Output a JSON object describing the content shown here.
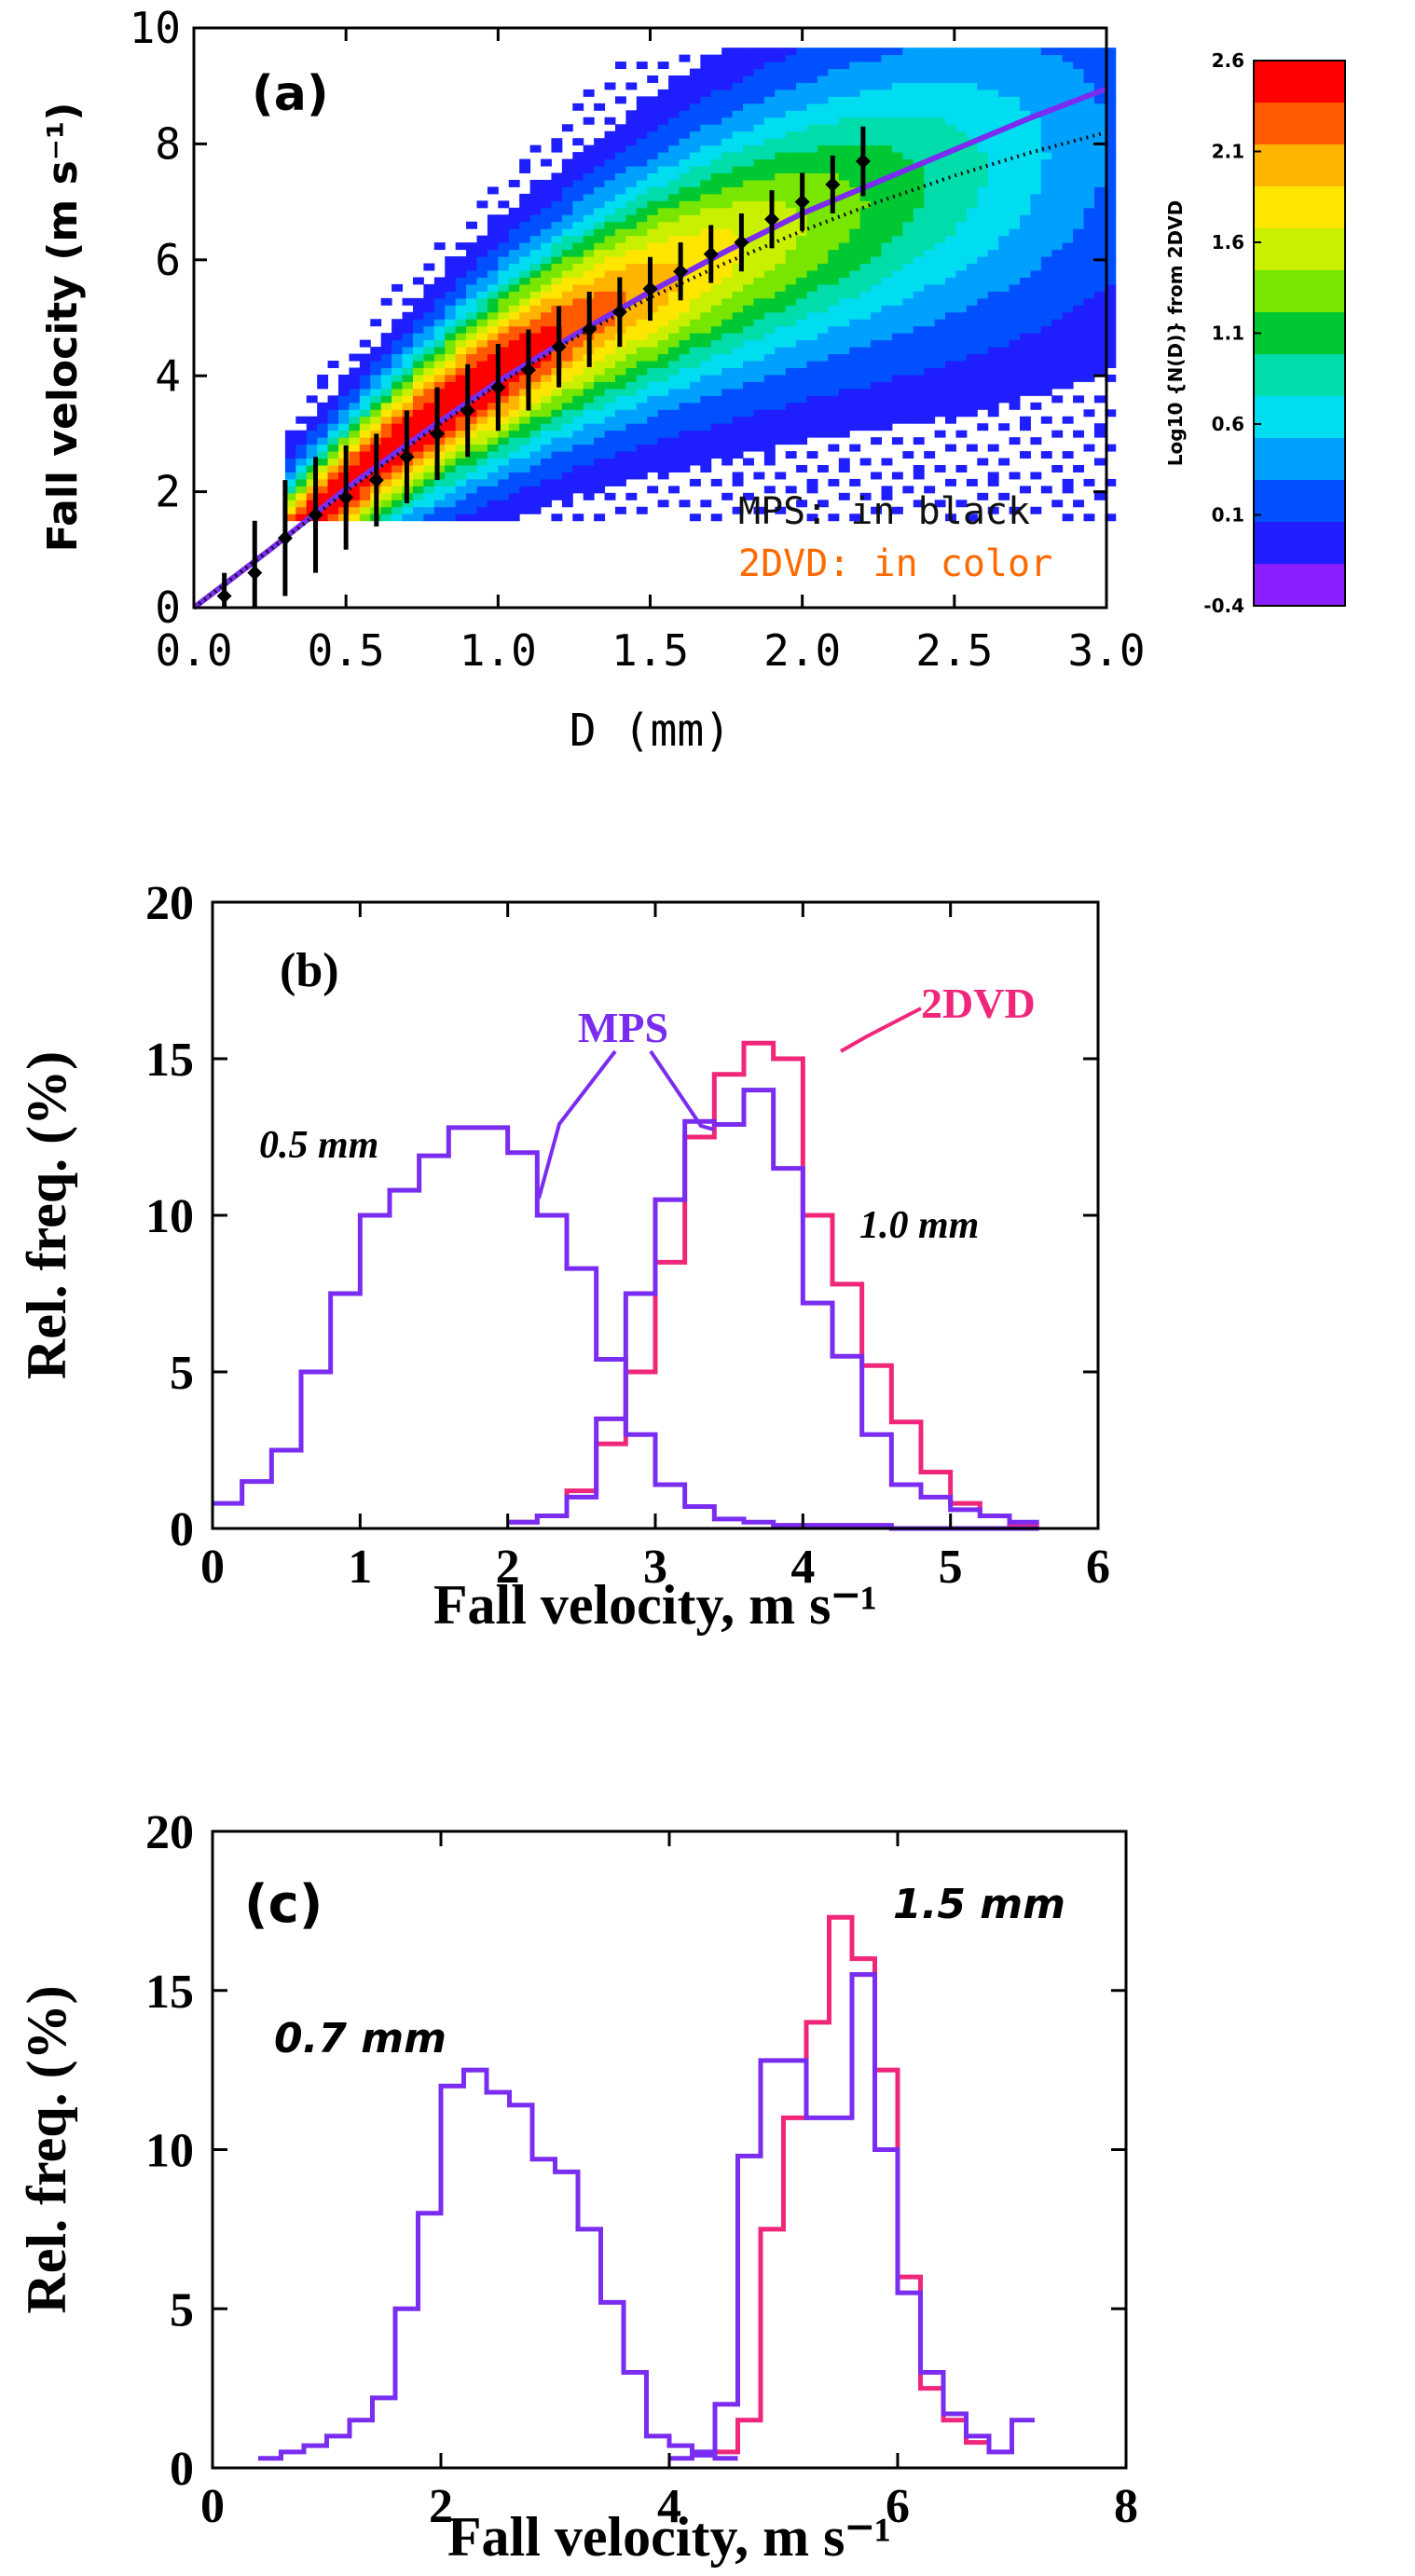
{
  "colors": {
    "mps": "#7a2cf0",
    "dvd": "#f0267a",
    "mps_label": "#111111",
    "dvd_label": "#ff6a00",
    "axis": "#000000"
  },
  "chart_data": [
    {
      "panel": "a",
      "type": "heatmap",
      "panel_label": "(a)",
      "xlabel": "D (mm)",
      "ylabel": "Fall velocity (m s⁻¹)",
      "xlim": [
        0,
        3.0
      ],
      "ylim": [
        0,
        10
      ],
      "xticks": [
        "0.0",
        "0.5",
        "1.0",
        "1.5",
        "2.0",
        "2.5",
        "3.0"
      ],
      "xtick_values": [
        0,
        0.5,
        1.0,
        1.5,
        2.0,
        2.5,
        3.0
      ],
      "yticks": [
        "0",
        "2",
        "4",
        "6",
        "8",
        "10"
      ],
      "ytick_values": [
        0,
        2,
        4,
        6,
        8,
        10
      ],
      "legend": {
        "mps": "MPS: in black",
        "dvd": "2DVD: in color"
      },
      "colorbar": {
        "label": "Log10 {N(D)} from 2DVD",
        "ticks": [
          "2.6",
          "2.1",
          "1.6",
          "1.1",
          "0.6",
          "0.1",
          "-0.4"
        ],
        "tick_values": [
          2.6,
          2.1,
          1.6,
          1.1,
          0.6,
          0.1,
          -0.4
        ],
        "colors": [
          "#ff0000",
          "#ff5a00",
          "#ffb400",
          "#ffe600",
          "#c8f000",
          "#78e600",
          "#00c832",
          "#00dcaa",
          "#00dcf0",
          "#00a0ff",
          "#0050ff",
          "#1e1eff",
          "#8a1eff"
        ]
      },
      "mps_points": {
        "x": [
          0.1,
          0.2,
          0.3,
          0.4,
          0.5,
          0.6,
          0.7,
          0.8,
          0.9,
          1.0,
          1.1,
          1.2,
          1.3,
          1.4,
          1.5,
          1.6,
          1.7,
          1.8,
          1.9,
          2.0,
          2.1,
          2.2
        ],
        "y": [
          0.2,
          0.6,
          1.2,
          1.6,
          1.9,
          2.2,
          2.6,
          3.0,
          3.4,
          3.8,
          4.1,
          4.5,
          4.8,
          5.1,
          5.5,
          5.8,
          6.1,
          6.3,
          6.7,
          7.0,
          7.3,
          7.7
        ],
        "err": [
          0.4,
          0.9,
          1.0,
          1.0,
          0.9,
          0.8,
          0.8,
          0.8,
          0.8,
          0.75,
          0.7,
          0.7,
          0.65,
          0.6,
          0.55,
          0.5,
          0.5,
          0.5,
          0.5,
          0.5,
          0.5,
          0.6
        ]
      },
      "fit_curve": {
        "x": [
          0.0,
          0.25,
          0.5,
          0.75,
          1.0,
          1.25,
          1.5,
          1.75,
          2.0,
          2.25,
          2.5,
          2.75,
          3.0
        ],
        "y": [
          0.0,
          1.0,
          2.05,
          3.0,
          3.9,
          4.7,
          5.45,
          6.15,
          6.8,
          7.35,
          7.9,
          8.45,
          8.95
        ]
      },
      "reference_curve": {
        "x": [
          0.0,
          0.25,
          0.5,
          0.75,
          1.0,
          1.25,
          1.5,
          1.75,
          2.0,
          2.25,
          2.5,
          2.75,
          3.0
        ],
        "y": [
          0.0,
          1.0,
          2.0,
          2.95,
          3.85,
          4.65,
          5.35,
          5.95,
          6.5,
          7.0,
          7.45,
          7.85,
          8.2
        ]
      }
    },
    {
      "panel": "b",
      "type": "line",
      "panel_label": "(b)",
      "xlabel": "Fall velocity, m s⁻¹",
      "ylabel": "Rel. freq. (%)",
      "xlim": [
        0,
        6
      ],
      "ylim": [
        0,
        20
      ],
      "xticks": [
        "0",
        "1",
        "2",
        "3",
        "4",
        "5",
        "6"
      ],
      "xtick_values": [
        0,
        1,
        2,
        3,
        4,
        5,
        6
      ],
      "yticks": [
        "0",
        "5",
        "10",
        "15",
        "20"
      ],
      "ytick_values": [
        0,
        5,
        10,
        15,
        20
      ],
      "annotations": {
        "mps": "MPS",
        "dvd": "2DVD",
        "d1": "0.5 mm",
        "d2": "1.0 mm"
      },
      "bin_width": 0.2,
      "series": [
        {
          "name": "MPS",
          "color": "#7a2cf0",
          "x": [
            0.0,
            0.2,
            0.4,
            0.6,
            0.8,
            1.0,
            1.2,
            1.4,
            1.6,
            1.8,
            2.0,
            2.2,
            2.4,
            2.6,
            2.8,
            3.0,
            3.2,
            3.4,
            3.6,
            3.8,
            4.0,
            4.2,
            4.4,
            4.6,
            4.8,
            5.0,
            5.2,
            5.4
          ],
          "values": [
            0.8,
            1.5,
            2.5,
            5.0,
            7.5,
            10.0,
            10.8,
            11.9,
            12.8,
            12.8,
            12.0,
            10.0,
            8.3,
            5.4,
            3.0,
            1.4,
            0.7,
            0.3,
            0.2,
            0.1,
            0.1,
            0.1,
            0.1,
            0.0,
            0.0,
            0.0,
            0.0,
            0.0
          ]
        },
        {
          "name": "MPS",
          "color": "#7a2cf0",
          "x": [
            2.0,
            2.2,
            2.4,
            2.6,
            2.8,
            3.0,
            3.2,
            3.4,
            3.6,
            3.8,
            4.0,
            4.2,
            4.4,
            4.6,
            4.8,
            5.0,
            5.2,
            5.4
          ],
          "values": [
            0.2,
            0.4,
            1.0,
            3.5,
            7.5,
            10.5,
            13.0,
            12.9,
            14.0,
            11.5,
            7.2,
            5.5,
            3.0,
            1.4,
            1.0,
            0.6,
            0.4,
            0.2
          ]
        },
        {
          "name": "2DVD",
          "color": "#f0267a",
          "x": [
            2.0,
            2.2,
            2.4,
            2.6,
            2.8,
            3.0,
            3.2,
            3.4,
            3.6,
            3.8,
            4.0,
            4.2,
            4.4,
            4.6,
            4.8,
            5.0,
            5.2,
            5.4
          ],
          "values": [
            0.2,
            0.4,
            1.2,
            2.7,
            5.0,
            8.5,
            12.5,
            14.5,
            15.5,
            15.0,
            10.0,
            7.8,
            5.2,
            3.4,
            1.8,
            0.8,
            0.4,
            0.1
          ]
        }
      ]
    },
    {
      "panel": "c",
      "type": "line",
      "panel_label": "(c)",
      "xlabel": "Fall velocity, m s⁻¹",
      "ylabel": "Rel. freq. (%)",
      "xlim": [
        0,
        8
      ],
      "ylim": [
        0,
        20
      ],
      "xticks": [
        "0",
        "2",
        "4",
        "6",
        "8"
      ],
      "xtick_values": [
        0,
        2,
        4,
        6,
        8
      ],
      "yticks": [
        "0",
        "5",
        "10",
        "15",
        "20"
      ],
      "ytick_values": [
        0,
        5,
        10,
        15,
        20
      ],
      "annotations": {
        "d1": "0.7 mm",
        "d2": "1.5 mm"
      },
      "bin_width": 0.2,
      "series": [
        {
          "name": "MPS",
          "color": "#7a2cf0",
          "x": [
            0.4,
            0.6,
            0.8,
            1.0,
            1.2,
            1.4,
            1.6,
            1.8,
            2.0,
            2.2,
            2.4,
            2.6,
            2.8,
            3.0,
            3.2,
            3.4,
            3.6,
            3.8,
            4.0,
            4.2,
            4.4
          ],
          "values": [
            0.3,
            0.5,
            0.7,
            1.0,
            1.5,
            2.2,
            5.0,
            8.0,
            12.0,
            12.5,
            11.8,
            11.4,
            9.7,
            9.3,
            7.5,
            5.2,
            3.0,
            1.0,
            0.7,
            0.4,
            0.3
          ]
        },
        {
          "name": "MPS",
          "color": "#7a2cf0",
          "x": [
            4.0,
            4.2,
            4.4,
            4.6,
            4.8,
            5.0,
            5.2,
            5.4,
            5.6,
            5.8,
            6.0,
            6.2,
            6.4,
            6.6,
            6.8,
            7.0
          ],
          "values": [
            0.3,
            0.5,
            2.0,
            9.8,
            12.8,
            12.8,
            11.0,
            11.0,
            15.5,
            10.0,
            5.5,
            3.0,
            1.7,
            1.0,
            0.5,
            1.5
          ]
        },
        {
          "name": "2DVD",
          "color": "#f0267a",
          "x": [
            4.4,
            4.6,
            4.8,
            5.0,
            5.2,
            5.4,
            5.6,
            5.8,
            6.0,
            6.2,
            6.4,
            6.6
          ],
          "values": [
            0.5,
            1.5,
            7.5,
            11.0,
            14.0,
            17.3,
            16.0,
            12.5,
            6.0,
            2.5,
            1.5,
            0.8
          ]
        }
      ]
    }
  ]
}
